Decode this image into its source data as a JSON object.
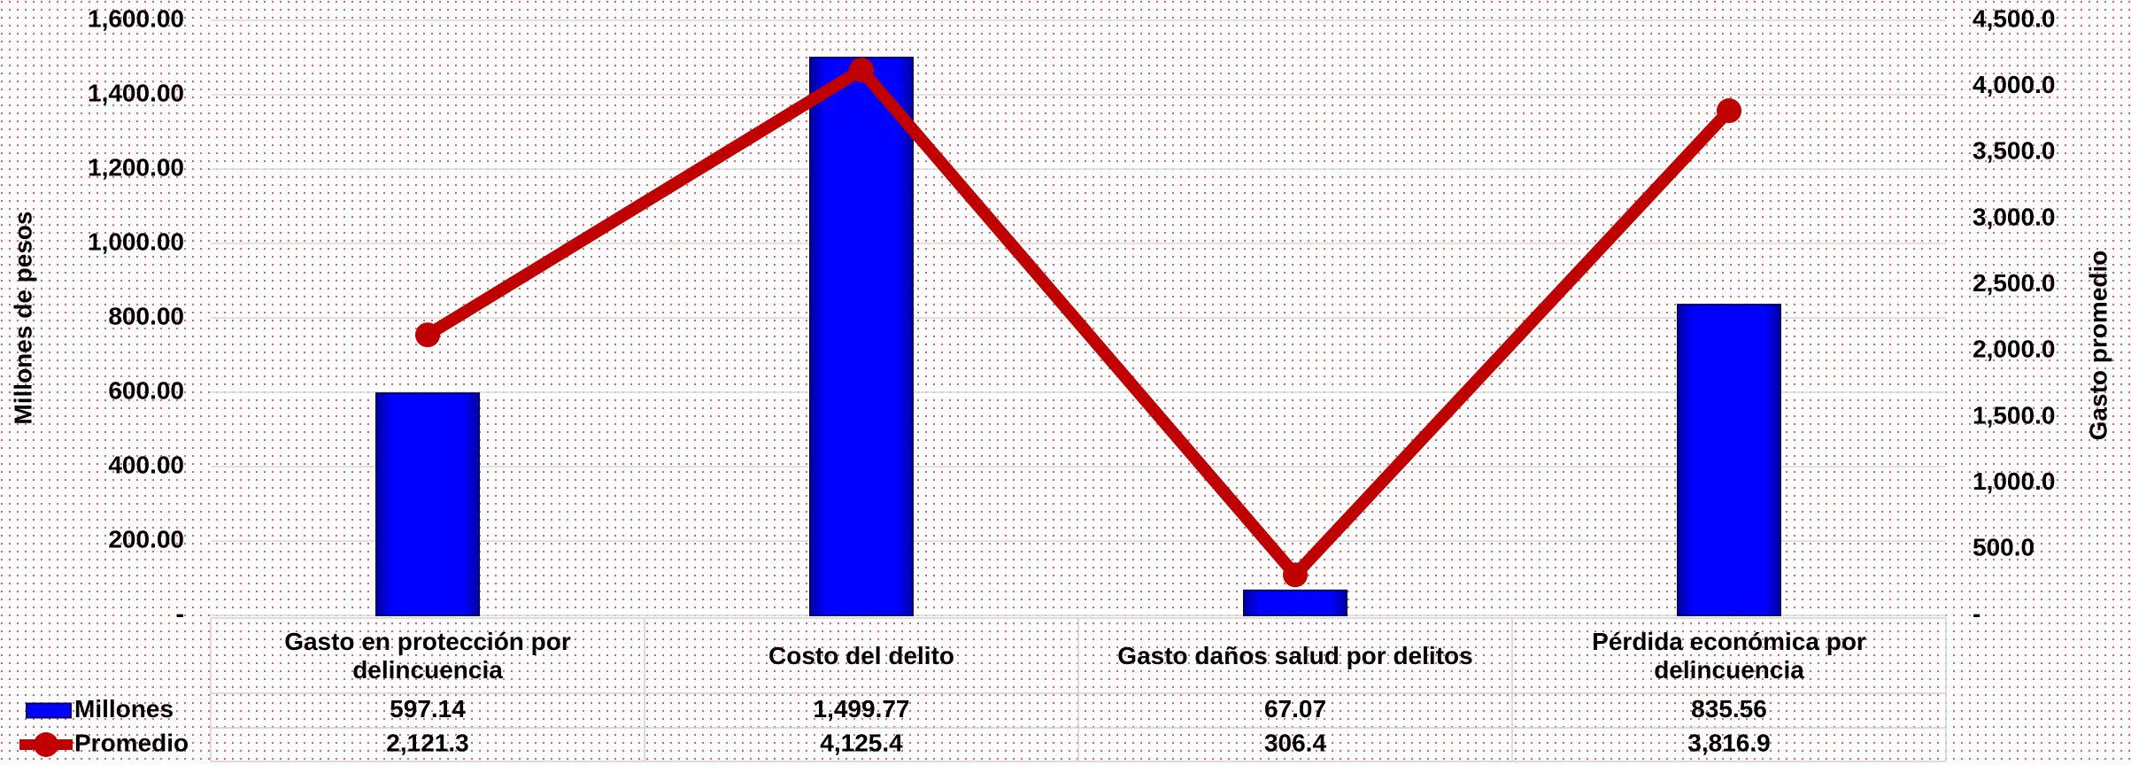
{
  "chart_data": {
    "type": "bar_line",
    "ylabel": "Millones de pesos",
    "y2label": "Gasto promedio",
    "categories": [
      "Gasto en protección por delincuencia",
      "Costo del delito",
      "Gasto daños salud por delitos",
      "Pérdida económica por delincuencia"
    ],
    "series": [
      {
        "name": "Millones",
        "type": "bar",
        "color": "#0000ff",
        "axis": "y",
        "values": [
          597.14,
          1499.77,
          67.07,
          835.56
        ],
        "value_labels": [
          "597.14",
          "1,499.77",
          "67.07",
          "835.56"
        ]
      },
      {
        "name": "Promedio",
        "type": "line",
        "color": "#c00000",
        "axis": "y2",
        "values": [
          2121.3,
          4125.4,
          306.4,
          3816.9
        ],
        "value_labels": [
          "2,121.3",
          "4,125.4",
          "306.4",
          "3,816.9"
        ]
      }
    ],
    "ylim": [
      0,
      1600
    ],
    "yticks": [
      {
        "value": 0,
        "label": "-"
      },
      {
        "value": 200,
        "label": "200.00"
      },
      {
        "value": 400,
        "label": "400.00"
      },
      {
        "value": 600,
        "label": "600.00"
      },
      {
        "value": 800,
        "label": "800.00"
      },
      {
        "value": 1000,
        "label": "1,000.00"
      },
      {
        "value": 1200,
        "label": "1,200.00"
      },
      {
        "value": 1400,
        "label": "1,400.00"
      },
      {
        "value": 1600,
        "label": "1,600.00"
      }
    ],
    "y2lim": [
      0,
      4500
    ],
    "y2ticks": [
      {
        "value": 0,
        "label": "-"
      },
      {
        "value": 500,
        "label": "500.0"
      },
      {
        "value": 1000,
        "label": "1,000.0"
      },
      {
        "value": 1500,
        "label": "1,500.0"
      },
      {
        "value": 2000,
        "label": "2,000.0"
      },
      {
        "value": 2500,
        "label": "2,500.0"
      },
      {
        "value": 3000,
        "label": "3,000.0"
      },
      {
        "value": 3500,
        "label": "3,500.0"
      },
      {
        "value": 4000,
        "label": "4,000.0"
      },
      {
        "value": 4500,
        "label": "4,500.0"
      }
    ],
    "grid": true
  }
}
